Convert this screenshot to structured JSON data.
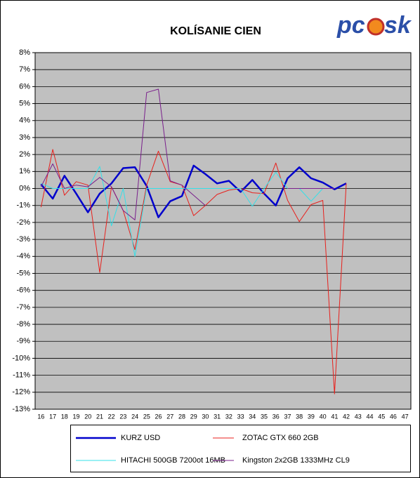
{
  "logo": [
    "pc",
    "sk"
  ],
  "chart_data": {
    "type": "line",
    "title": "KOLÍSANIE CIEN",
    "categories": [
      "16",
      "17",
      "18",
      "19",
      "20",
      "21",
      "22",
      "23",
      "24",
      "25",
      "26",
      "27",
      "28",
      "29",
      "30",
      "31",
      "32",
      "33",
      "34",
      "35",
      "36",
      "37",
      "38",
      "39",
      "40",
      "41",
      "42",
      "43",
      "44",
      "45",
      "46",
      "47"
    ],
    "series": [
      {
        "name": "KURZ USD",
        "color": "#0000cc",
        "width": 2.5,
        "values": [
          0.25,
          -0.6,
          0.75,
          -0.3,
          -1.4,
          -0.3,
          0.3,
          1.2,
          1.25,
          0.15,
          -1.7,
          -0.75,
          -0.45,
          1.35,
          0.85,
          0.3,
          0.45,
          -0.2,
          0.5,
          -0.3,
          -1.0,
          0.6,
          1.25,
          0.6,
          0.35,
          -0.05,
          0.3,
          null,
          null,
          null,
          null,
          null
        ]
      },
      {
        "name": "ZOTAC GTX 660 2GB",
        "color": "#e8201c",
        "width": 1,
        "values": [
          -1.1,
          2.3,
          -0.4,
          0.4,
          0.2,
          -4.95,
          0.1,
          -1.3,
          -3.6,
          0.2,
          2.2,
          0.4,
          0.2,
          -1.6,
          -1.0,
          -0.35,
          -0.1,
          0,
          -0.25,
          -0.3,
          1.5,
          -0.7,
          -1.95,
          -0.95,
          -0.7,
          -12.1,
          0.3,
          null,
          null,
          null,
          null,
          null
        ]
      },
      {
        "name": "HITACHI 500GB 7200ot 16MB",
        "color": "#33e0e8",
        "width": 1,
        "values": [
          0.3,
          0,
          0,
          0,
          0,
          1.3,
          -2.2,
          0,
          -4.0,
          0,
          0,
          0,
          0,
          0,
          0,
          0,
          0,
          0,
          -1.05,
          0,
          0.95,
          0,
          0,
          -0.75,
          0,
          null,
          null,
          null,
          null,
          null,
          null,
          null
        ]
      },
      {
        "name": "Kingston 2x2GB 1333MHz CL9",
        "color": "#7a1f8c",
        "width": 1,
        "values": [
          0.1,
          1.45,
          0,
          0.2,
          0.1,
          0.65,
          0.1,
          -1.3,
          -1.85,
          5.65,
          5.85,
          0.45,
          0.2,
          -0.4,
          -1.0,
          null,
          null,
          null,
          null,
          null,
          null,
          0,
          0,
          0,
          0,
          0,
          null,
          null,
          null,
          null,
          null,
          null
        ]
      }
    ],
    "ylim": [
      -13,
      8
    ],
    "yticks": [
      {
        "value": -13,
        "label": "-13%"
      },
      {
        "value": -12,
        "label": "-12%"
      },
      {
        "value": -11,
        "label": "-11%"
      },
      {
        "value": -10,
        "label": "-10%"
      },
      {
        "value": -9,
        "label": "-9%"
      },
      {
        "value": -8,
        "label": "-8%"
      },
      {
        "value": -7,
        "label": "-7%"
      },
      {
        "value": -6,
        "label": "-6%"
      },
      {
        "value": -5,
        "label": "-5%"
      },
      {
        "value": -4,
        "label": "-4%"
      },
      {
        "value": -3,
        "label": "-3%"
      },
      {
        "value": -2,
        "label": "-2%"
      },
      {
        "value": -1,
        "label": "-1%"
      },
      {
        "value": 0,
        "label": "0%"
      },
      {
        "value": 1,
        "label": "1%"
      },
      {
        "value": 2,
        "label": "2%"
      },
      {
        "value": 3,
        "label": "3%"
      },
      {
        "value": 4,
        "label": "4%"
      },
      {
        "value": 5,
        "label": "5%"
      },
      {
        "value": 6,
        "label": "6%"
      },
      {
        "value": 7,
        "label": "7%"
      },
      {
        "value": 8,
        "label": "8%"
      }
    ],
    "grid": true
  }
}
